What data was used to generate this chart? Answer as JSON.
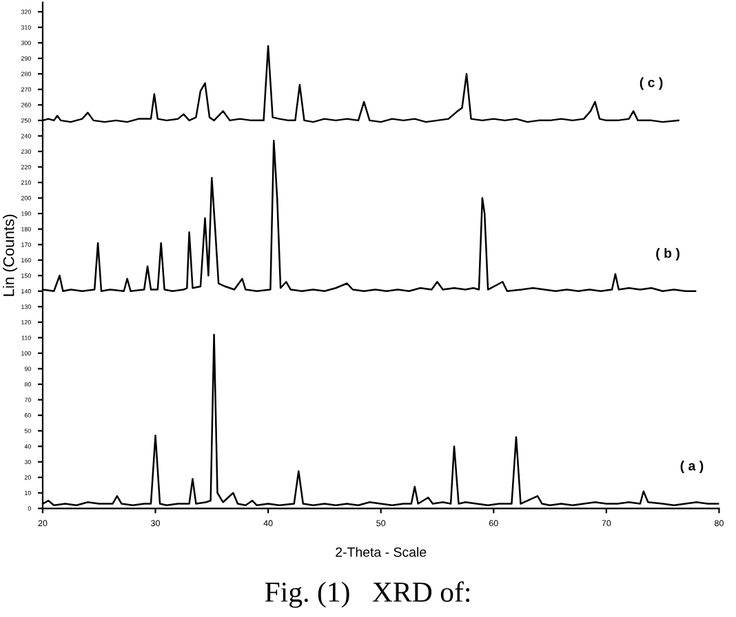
{
  "chart_data": {
    "type": "line",
    "xlabel": "2-Theta - Scale",
    "ylabel": "Lin (Counts)",
    "xlim": [
      20,
      80
    ],
    "xticks": [
      20,
      30,
      40,
      50,
      60,
      70,
      80
    ],
    "ylim": [
      0,
      326
    ],
    "yticks": [
      0,
      10,
      20,
      30,
      40,
      50,
      60,
      70,
      80,
      90,
      100,
      110,
      120,
      130,
      140,
      150,
      160,
      170,
      180,
      190,
      200,
      210,
      220,
      230,
      240,
      250,
      260,
      270,
      280,
      290,
      300,
      310,
      320
    ],
    "grid": false,
    "legend": false,
    "marker": "none",
    "line_style": "solid",
    "series": [
      {
        "name": "( a )",
        "color": "#000000",
        "x": [
          20,
          20.5,
          21,
          22,
          23,
          24,
          25,
          26.2,
          26.6,
          27,
          28,
          29,
          29.6,
          30.0,
          30.4,
          31,
          32,
          33,
          33.3,
          33.6,
          34.5,
          34.9,
          35.2,
          35.5,
          36,
          36.9,
          37.3,
          38,
          38.6,
          39,
          40,
          41,
          42.3,
          42.7,
          43.1,
          44,
          45,
          46,
          47,
          48,
          49,
          50,
          51,
          52,
          52.7,
          53.0,
          53.3,
          54.2,
          54.6,
          55.5,
          56.2,
          56.5,
          56.9,
          57.5,
          58.5,
          59.5,
          60.5,
          61.6,
          62.0,
          62.4,
          63.9,
          64.3,
          65,
          66,
          67,
          68,
          69,
          70,
          71,
          72,
          73,
          73.3,
          73.7,
          75,
          76,
          77,
          78,
          79,
          80
        ],
        "values": [
          3,
          5,
          2,
          3,
          2,
          4,
          3,
          3,
          8,
          3,
          2,
          3,
          3,
          47,
          3,
          2,
          3,
          3,
          19,
          3,
          4,
          5,
          112,
          10,
          4,
          10,
          3,
          2,
          5,
          2,
          3,
          2,
          3,
          24,
          3,
          2,
          3,
          2,
          3,
          2,
          4,
          3,
          2,
          3,
          3,
          14,
          3,
          7,
          3,
          4,
          3,
          40,
          3,
          4,
          3,
          2,
          3,
          3,
          46,
          3,
          8,
          3,
          2,
          3,
          2,
          3,
          4,
          3,
          3,
          4,
          3,
          11,
          4,
          3,
          2,
          3,
          4,
          3,
          3
        ]
      },
      {
        "name": "( b )",
        "color": "#000000",
        "x": [
          20,
          21,
          21.5,
          21.8,
          22.5,
          23.5,
          24.6,
          24.9,
          25.2,
          26,
          27.2,
          27.5,
          27.8,
          29,
          29.3,
          29.6,
          30.2,
          30.5,
          30.8,
          31.5,
          32.5,
          32.8,
          33.0,
          33.3,
          34.0,
          34.4,
          34.7,
          35.0,
          35.3,
          35.6,
          36.2,
          37,
          37.7,
          38,
          39,
          40.2,
          40.5,
          40.8,
          41.1,
          41.6,
          42,
          43,
          44,
          45,
          46,
          47,
          47.5,
          48.5,
          49.5,
          50.5,
          51.5,
          52.5,
          53.5,
          54.5,
          55,
          55.5,
          56.5,
          57.5,
          58.2,
          58.7,
          59.0,
          59.2,
          59.5,
          60.8,
          61.2,
          62.5,
          63.5,
          64.5,
          65.5,
          66.5,
          67.5,
          68.5,
          69.5,
          70.5,
          70.8,
          71.1,
          72,
          73,
          74,
          75,
          76,
          77,
          77.9
        ],
        "values": [
          141,
          140,
          150,
          140,
          141,
          140,
          141,
          171,
          140,
          141,
          140,
          148,
          140,
          141,
          156,
          141,
          141,
          171,
          141,
          140,
          141,
          142,
          178,
          142,
          143,
          187,
          150,
          213,
          180,
          145,
          143,
          141,
          148,
          141,
          140,
          141,
          237,
          200,
          142,
          146,
          141,
          140,
          141,
          140,
          142,
          145,
          141,
          140,
          141,
          140,
          141,
          140,
          142,
          141,
          146,
          141,
          142,
          141,
          142,
          141,
          200,
          190,
          141,
          146,
          140,
          141,
          142,
          141,
          140,
          141,
          140,
          141,
          140,
          141,
          151,
          141,
          142,
          141,
          142,
          140,
          141,
          140,
          140
        ]
      },
      {
        "name": "( c )",
        "color": "#000000",
        "x": [
          20,
          20.5,
          21,
          21.3,
          21.6,
          22.5,
          23.5,
          24,
          24.5,
          25.5,
          26.5,
          27.5,
          28.5,
          29.6,
          29.9,
          30.2,
          31,
          32,
          32.5,
          33,
          33.6,
          34,
          34.4,
          34.8,
          35.2,
          36,
          36.6,
          37.5,
          38.5,
          39.6,
          40,
          40.4,
          41,
          41.8,
          42.4,
          42.8,
          43.2,
          44,
          45,
          46,
          47,
          48,
          48.5,
          49,
          50,
          51,
          52,
          53,
          54,
          55,
          56,
          56.8,
          57.2,
          57.6,
          58,
          59,
          60,
          61,
          62,
          63,
          64,
          65,
          66,
          67,
          68,
          68.6,
          69.0,
          69.4,
          70,
          71,
          72,
          72.4,
          72.8,
          74,
          75,
          76.4
        ],
        "values": [
          250,
          251,
          250,
          253,
          250,
          249,
          251,
          255,
          250,
          249,
          250,
          249,
          251,
          251,
          267,
          251,
          250,
          251,
          254,
          250,
          252,
          269,
          274,
          252,
          250,
          256,
          250,
          251,
          250,
          250,
          298,
          252,
          251,
          250,
          250,
          273,
          250,
          249,
          251,
          250,
          251,
          250,
          262,
          250,
          249,
          251,
          250,
          251,
          249,
          250,
          251,
          256,
          258,
          280,
          251,
          250,
          251,
          250,
          251,
          249,
          250,
          250,
          251,
          250,
          251,
          256,
          262,
          251,
          250,
          250,
          251,
          256,
          250,
          250,
          249,
          250
        ]
      }
    ],
    "annotations": [
      "Fig. (1)   XRD of:"
    ]
  }
}
